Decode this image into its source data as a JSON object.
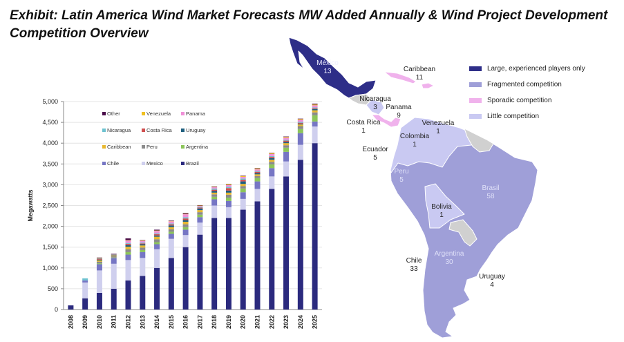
{
  "title": {
    "line1": "Exhibit:  Latin America Wind Market Forecasts MW Added Annually & Wind Project Development",
    "line2": "Competition Overview"
  },
  "chart_data": {
    "type": "bar",
    "stacked": true,
    "title": "",
    "xlabel": "",
    "ylabel": "Megawatts",
    "ylim": [
      0,
      5000
    ],
    "yticks": [
      "0",
      "500",
      "1,000",
      "1,500",
      "2,000",
      "2,500",
      "3,000",
      "3,500",
      "4,000",
      "4,500",
      "5,000"
    ],
    "grid": true,
    "legend_position": "top-left inside",
    "categories": [
      "2008",
      "2009",
      "2010",
      "2011",
      "2012",
      "2013",
      "2014",
      "2015",
      "2016",
      "2017",
      "2018",
      "2019",
      "2020",
      "2021",
      "2022",
      "2023",
      "2024",
      "2025"
    ],
    "series": [
      {
        "name": "Brazil",
        "color": "#2b2a7e",
        "values": [
          100,
          270,
          400,
          500,
          700,
          810,
          1000,
          1240,
          1500,
          1800,
          2200,
          2200,
          2400,
          2600,
          2900,
          3200,
          3600,
          4000
        ]
      },
      {
        "name": "Mexico",
        "color": "#cfcfee",
        "values": [
          0,
          380,
          540,
          600,
          490,
          430,
          450,
          460,
          290,
          290,
          300,
          260,
          260,
          300,
          300,
          360,
          360,
          400
        ]
      },
      {
        "name": "Chile",
        "color": "#7676c4",
        "values": [
          0,
          50,
          150,
          140,
          130,
          140,
          120,
          120,
          130,
          130,
          150,
          150,
          160,
          180,
          200,
          230,
          280,
          120
        ]
      },
      {
        "name": "Argentina",
        "color": "#8cc55a",
        "values": [
          0,
          0,
          20,
          10,
          60,
          50,
          50,
          50,
          60,
          60,
          60,
          80,
          90,
          80,
          90,
          100,
          100,
          150
        ]
      },
      {
        "name": "Peru",
        "color": "#8a8a8a",
        "values": [
          0,
          0,
          40,
          30,
          70,
          60,
          70,
          60,
          70,
          60,
          60,
          70,
          60,
          50,
          60,
          60,
          70,
          70
        ]
      },
      {
        "name": "Caribbean",
        "color": "#e8b830",
        "values": [
          0,
          0,
          30,
          20,
          60,
          50,
          60,
          50,
          60,
          50,
          40,
          50,
          50,
          40,
          50,
          50,
          40,
          50
        ]
      },
      {
        "name": "Uruguay",
        "color": "#1f5f7f",
        "values": [
          0,
          0,
          20,
          10,
          40,
          30,
          30,
          40,
          40,
          40,
          40,
          50,
          60,
          30,
          40,
          30,
          20,
          30
        ]
      },
      {
        "name": "Costa Rica",
        "color": "#d05050",
        "values": [
          0,
          0,
          20,
          10,
          30,
          20,
          30,
          30,
          40,
          20,
          30,
          60,
          40,
          30,
          30,
          30,
          20,
          20
        ]
      },
      {
        "name": "Nicaragua",
        "color": "#6ec2d0",
        "values": [
          0,
          50,
          10,
          10,
          20,
          20,
          20,
          20,
          30,
          20,
          30,
          30,
          30,
          20,
          20,
          20,
          20,
          20
        ]
      },
      {
        "name": "Panama",
        "color": "#f090d8",
        "values": [
          0,
          0,
          0,
          0,
          60,
          40,
          60,
          50,
          70,
          20,
          30,
          40,
          40,
          40,
          50,
          50,
          50,
          50
        ]
      },
      {
        "name": "Venezuela",
        "color": "#f0c020",
        "values": [
          0,
          0,
          10,
          0,
          10,
          10,
          10,
          10,
          10,
          10,
          10,
          20,
          20,
          20,
          20,
          20,
          20,
          20
        ]
      },
      {
        "name": "Other",
        "color": "#4a0c4a",
        "values": [
          0,
          0,
          10,
          10,
          40,
          10,
          20,
          10,
          20,
          10,
          10,
          10,
          10,
          10,
          10,
          10,
          10,
          20
        ]
      }
    ],
    "legend_order": [
      "Other",
      "Venezuela",
      "Panama",
      "Nicaragua",
      "Costa Rica",
      "Uruguay",
      "Caribbean",
      "Peru",
      "Argentina",
      "Chile",
      "Mexico",
      "Brazil"
    ]
  },
  "map": {
    "legend": [
      {
        "label": "Large, experienced players only",
        "color": "#2e2e88"
      },
      {
        "label": "Fragmented competition",
        "color": "#9f9fd8"
      },
      {
        "label": "Sporadic competition",
        "color": "#f0b2ec"
      },
      {
        "label": "Little competition",
        "color": "#c9c9f2"
      }
    ],
    "countries": [
      {
        "name": "México",
        "count": "13"
      },
      {
        "name": "Caribbean",
        "count": "11"
      },
      {
        "name": "Nicaragua",
        "count": "3"
      },
      {
        "name": "Panama",
        "count": "9"
      },
      {
        "name": "Costa Rica",
        "count": "1"
      },
      {
        "name": "Venezuela",
        "count": "1"
      },
      {
        "name": "Colombia",
        "count": "1"
      },
      {
        "name": "Ecuador",
        "count": "5"
      },
      {
        "name": "Peru",
        "count": "5"
      },
      {
        "name": "Brasil",
        "count": "58"
      },
      {
        "name": "Bolivia",
        "count": "1"
      },
      {
        "name": "Chile",
        "count": "33"
      },
      {
        "name": "Argentina",
        "count": "30"
      },
      {
        "name": "Uruguay",
        "count": "4"
      }
    ]
  }
}
